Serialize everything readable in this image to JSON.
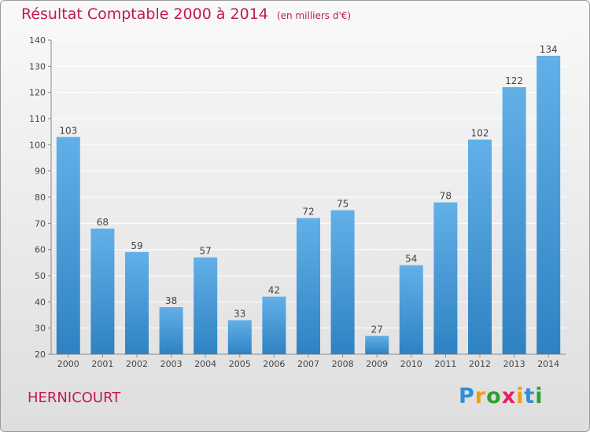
{
  "title": "Résultat Comptable 2000 à 2014",
  "subtitle": "(en milliers d'€)",
  "commune": "HERNICOURT",
  "brand": {
    "letters": [
      "P",
      "r",
      "o",
      "x",
      "i",
      "t",
      "i"
    ],
    "colors": [
      "#2e8fd6",
      "#f39c12",
      "#2ca02c",
      "#e91e63",
      "#f39c12",
      "#2e8fd6",
      "#2ca02c"
    ]
  },
  "colors": {
    "bar_light": "#62b0e8",
    "bar_dark": "#2f82c2",
    "axis": "#888888",
    "grid": "#ffffff",
    "text": "#444444"
  },
  "chart_data": {
    "type": "bar",
    "categories": [
      "2000",
      "2001",
      "2002",
      "2003",
      "2004",
      "2005",
      "2006",
      "2007",
      "2008",
      "2009",
      "2010",
      "2011",
      "2012",
      "2013",
      "2014"
    ],
    "values": [
      103,
      68,
      59,
      38,
      57,
      33,
      42,
      72,
      75,
      27,
      54,
      78,
      102,
      122,
      134
    ],
    "title": "Résultat Comptable 2000 à 2014",
    "subtitle": "(en milliers d'€)",
    "ylim": [
      20,
      140
    ],
    "yticks": [
      20,
      30,
      40,
      50,
      60,
      70,
      80,
      90,
      100,
      110,
      120,
      130,
      140
    ],
    "grid": true,
    "legend": "none"
  }
}
